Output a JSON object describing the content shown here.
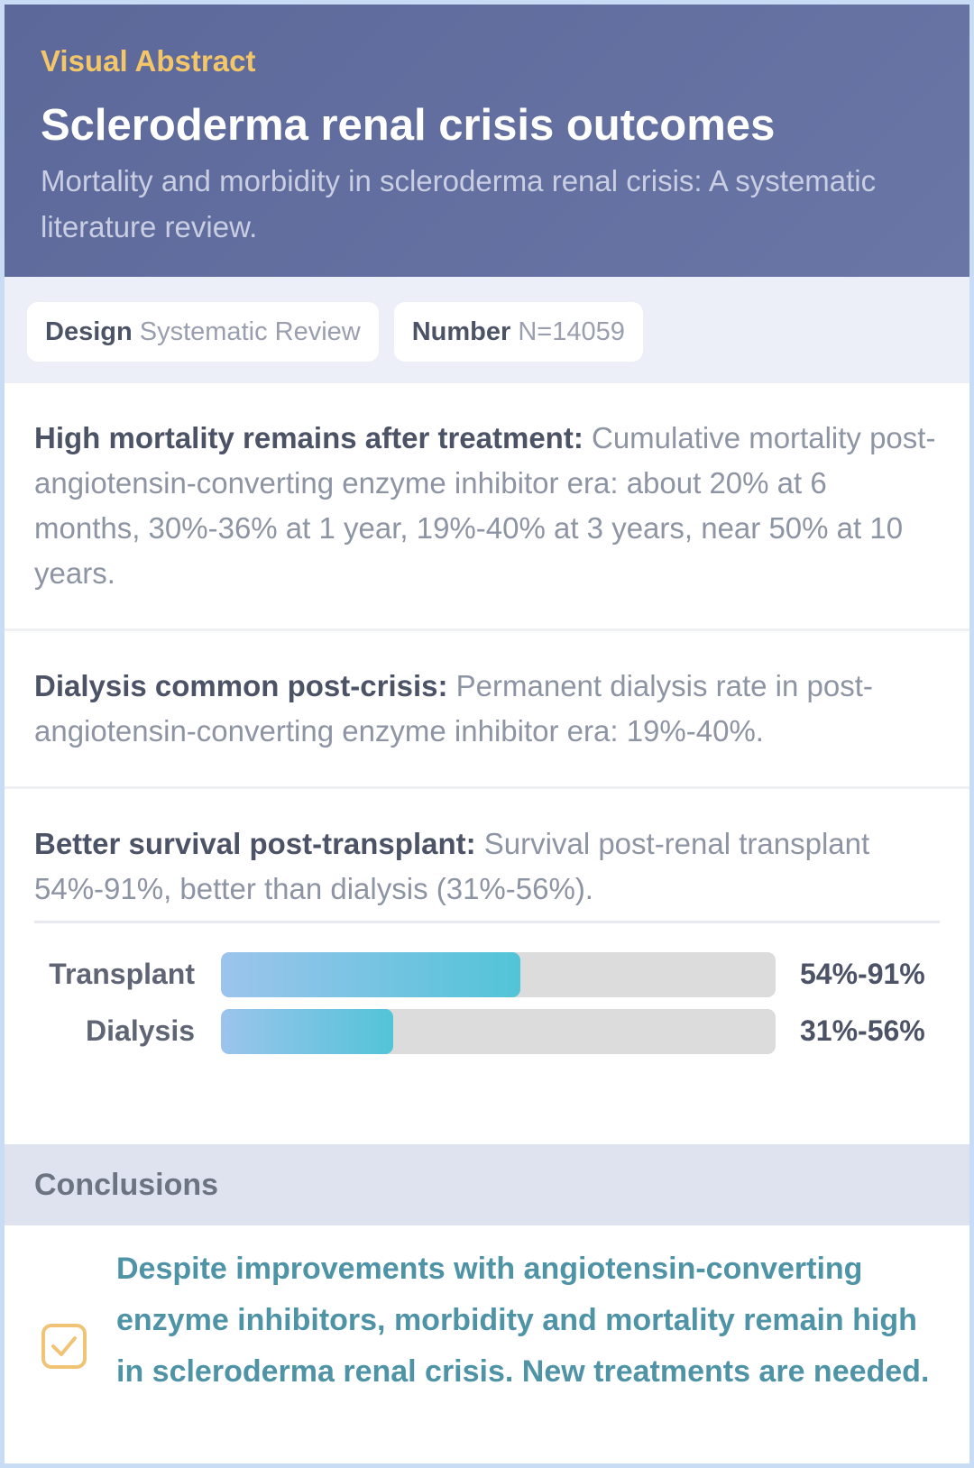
{
  "header": {
    "kicker": "Visual Abstract",
    "title": "Scleroderma renal crisis outcomes",
    "subtitle": "Mortality and morbidity in scleroderma renal crisis: A systematic literature review."
  },
  "tags": [
    {
      "label": "Design",
      "value": "Systematic Review"
    },
    {
      "label": "Number",
      "value": "N=14059"
    }
  ],
  "findings": [
    {
      "heading": "High mortality remains after treatment:",
      "text": "Cumulative mortality post-angiotensin-converting enzyme inhibitor era: about 20% at 6 months, 30%-36% at 1 year, 19%-40% at 3 years, near 50% at 10 years."
    },
    {
      "heading": "Dialysis common post-crisis:",
      "text": "Permanent dialysis rate in post-angiotensin-converting enzyme inhibitor era: 19%-40%."
    },
    {
      "heading": "Better survival post-transplant:",
      "text": "Survival post-renal transplant 54%-91%, better than dialysis (31%-56%)."
    }
  ],
  "chart": {
    "xlim": [
      0,
      100
    ],
    "bars": [
      {
        "label": "Transplant",
        "value": 54,
        "value_label": "54%-91%"
      },
      {
        "label": "Dialysis",
        "value": 31,
        "value_label": "31%-56%"
      }
    ]
  },
  "conclusions": {
    "heading": "Conclusions",
    "text": "Despite improvements with angiotensin-converting enzyme inhibitors, morbidity and mortality remain high in scleroderma renal crisis. New treatments are needed."
  }
}
